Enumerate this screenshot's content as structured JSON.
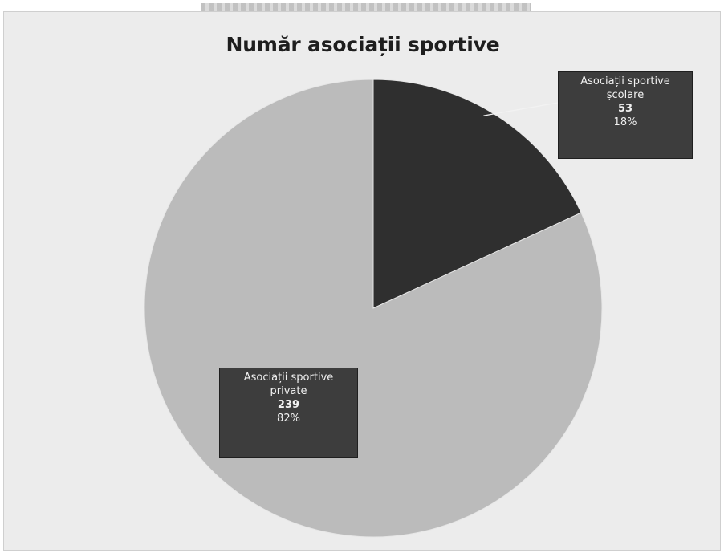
{
  "chart_data": {
    "type": "pie",
    "title": "Număr asociații sportive",
    "slices": [
      {
        "label_lines": [
          "Asociații sportive",
          "școlare"
        ],
        "value": 53,
        "percent": "18%",
        "color": "#2f2f2f"
      },
      {
        "label_lines": [
          "Asociații sportive",
          "private"
        ],
        "value": 239,
        "percent": "82%",
        "color": "#bbbbbb"
      }
    ],
    "start_angle_deg": 0,
    "direction": "clockwise",
    "legend": "none",
    "data_labels": "callout boxes"
  }
}
